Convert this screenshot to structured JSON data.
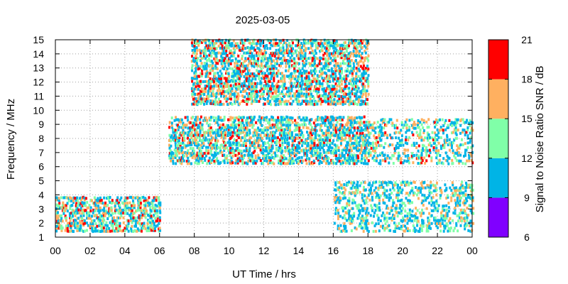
{
  "chart_data": {
    "type": "scatter",
    "title": "2025-03-05",
    "xlabel": "UT Time / hrs",
    "ylabel": "Frequency / MHz",
    "xlim": [
      0,
      24
    ],
    "ylim": [
      1,
      15
    ],
    "x_ticks": [
      "00",
      "02",
      "04",
      "06",
      "08",
      "10",
      "12",
      "14",
      "16",
      "18",
      "20",
      "22",
      "00"
    ],
    "y_ticks": [
      "1",
      "2",
      "3",
      "4",
      "5",
      "6",
      "7",
      "8",
      "9",
      "10",
      "11",
      "12",
      "13",
      "14",
      "15"
    ],
    "grid": true,
    "colorbar": {
      "label": "Signal to Noise Ratio SNR / dB",
      "range": [
        6,
        21
      ],
      "ticks": [
        "6",
        "9",
        "12",
        "15",
        "18",
        "21"
      ],
      "bands": [
        {
          "from": 6,
          "to": 9,
          "color": "#8000ff"
        },
        {
          "from": 9,
          "to": 12,
          "color": "#00b4e6"
        },
        {
          "from": 12,
          "to": 15,
          "color": "#80ffa8"
        },
        {
          "from": 15,
          "to": 18,
          "color": "#ffb060"
        },
        {
          "from": 18,
          "to": 21,
          "color": "#ff0000"
        }
      ]
    },
    "regions": [
      {
        "x": [
          0,
          6
        ],
        "y": [
          1.5,
          4
        ],
        "snr": [
          10,
          20
        ],
        "density": 0.55
      },
      {
        "x": [
          6.5,
          18
        ],
        "y": [
          6.3,
          9.6
        ],
        "snr": [
          9,
          20
        ],
        "density": 0.5
      },
      {
        "x": [
          7.8,
          18
        ],
        "y": [
          10.5,
          15
        ],
        "snr": [
          9,
          21
        ],
        "density": 0.5
      },
      {
        "x": [
          18,
          24
        ],
        "y": [
          6.3,
          9.5
        ],
        "snr": [
          9,
          19
        ],
        "density": 0.3
      },
      {
        "x": [
          16,
          24
        ],
        "y": [
          1.5,
          5
        ],
        "snr": [
          9,
          18
        ],
        "density": 0.35
      }
    ]
  }
}
